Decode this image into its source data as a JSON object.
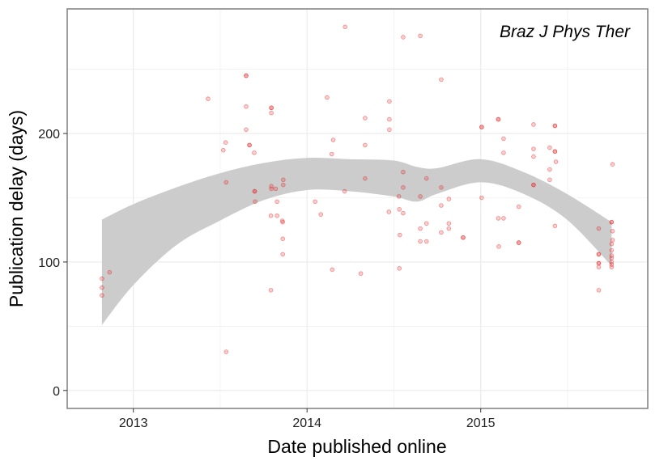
{
  "chart_data": {
    "type": "scatter",
    "annotation": "Braz J Phys Ther",
    "xlabel": "Date published online",
    "ylabel": "Publication delay (days)",
    "xlim": [
      "2012-08-15",
      "2015-12-18"
    ],
    "ylim": [
      -14,
      297
    ],
    "x_ticks": [
      {
        "label": "2013",
        "date": "2013-01-01"
      },
      {
        "label": "2014",
        "date": "2014-01-01"
      },
      {
        "label": "2015",
        "date": "2015-01-01"
      }
    ],
    "y_ticks": [
      0,
      100,
      200
    ],
    "grid": true,
    "point_color": "#e41a1c",
    "band_color": "#cccccc",
    "panel_border_color": "#7f7f7f",
    "grid_color": "#ebebeb",
    "points": [
      {
        "x": "2012-10-27",
        "y": 87
      },
      {
        "x": "2012-10-27",
        "y": 80
      },
      {
        "x": "2012-10-27",
        "y": 74
      },
      {
        "x": "2012-11-12",
        "y": 92
      },
      {
        "x": "2013-06-07",
        "y": 227
      },
      {
        "x": "2013-07-09",
        "y": 187
      },
      {
        "x": "2013-07-14",
        "y": 193
      },
      {
        "x": "2013-07-15",
        "y": 162
      },
      {
        "x": "2013-07-15",
        "y": 30
      },
      {
        "x": "2013-08-26",
        "y": 245
      },
      {
        "x": "2013-08-26",
        "y": 245
      },
      {
        "x": "2013-08-26",
        "y": 221
      },
      {
        "x": "2013-08-26",
        "y": 203
      },
      {
        "x": "2013-09-02",
        "y": 191
      },
      {
        "x": "2013-09-02",
        "y": 191
      },
      {
        "x": "2013-09-12",
        "y": 185
      },
      {
        "x": "2013-09-13",
        "y": 155
      },
      {
        "x": "2013-09-13",
        "y": 155
      },
      {
        "x": "2013-09-14",
        "y": 147
      },
      {
        "x": "2013-10-18",
        "y": 220
      },
      {
        "x": "2013-10-18",
        "y": 220
      },
      {
        "x": "2013-10-18",
        "y": 216
      },
      {
        "x": "2013-10-18",
        "y": 159
      },
      {
        "x": "2013-10-18",
        "y": 157
      },
      {
        "x": "2013-10-17",
        "y": 136
      },
      {
        "x": "2013-10-17",
        "y": 78
      },
      {
        "x": "2013-10-27",
        "y": 157
      },
      {
        "x": "2013-10-30",
        "y": 147
      },
      {
        "x": "2013-10-30",
        "y": 136
      },
      {
        "x": "2013-11-12",
        "y": 164
      },
      {
        "x": "2013-11-12",
        "y": 160
      },
      {
        "x": "2013-11-10",
        "y": 132
      },
      {
        "x": "2013-11-11",
        "y": 131
      },
      {
        "x": "2013-11-11",
        "y": 118
      },
      {
        "x": "2013-11-11",
        "y": 106
      },
      {
        "x": "2014-01-18",
        "y": 147
      },
      {
        "x": "2014-01-30",
        "y": 137
      },
      {
        "x": "2014-02-12",
        "y": 228
      },
      {
        "x": "2014-02-25",
        "y": 195
      },
      {
        "x": "2014-02-22",
        "y": 184
      },
      {
        "x": "2014-02-23",
        "y": 94
      },
      {
        "x": "2014-03-22",
        "y": 283
      },
      {
        "x": "2014-03-21",
        "y": 155
      },
      {
        "x": "2014-04-24",
        "y": 91
      },
      {
        "x": "2014-05-03",
        "y": 212
      },
      {
        "x": "2014-05-03",
        "y": 191
      },
      {
        "x": "2014-05-03",
        "y": 165
      },
      {
        "x": "2014-06-23",
        "y": 225
      },
      {
        "x": "2014-06-23",
        "y": 211
      },
      {
        "x": "2014-06-23",
        "y": 203
      },
      {
        "x": "2014-06-22",
        "y": 139
      },
      {
        "x": "2014-07-13",
        "y": 151
      },
      {
        "x": "2014-07-14",
        "y": 141
      },
      {
        "x": "2014-07-15",
        "y": 121
      },
      {
        "x": "2014-07-14",
        "y": 95
      },
      {
        "x": "2014-07-22",
        "y": 275
      },
      {
        "x": "2014-07-22",
        "y": 170
      },
      {
        "x": "2014-07-22",
        "y": 158
      },
      {
        "x": "2014-07-22",
        "y": 138
      },
      {
        "x": "2014-08-27",
        "y": 276
      },
      {
        "x": "2014-08-27",
        "y": 151
      },
      {
        "x": "2014-08-27",
        "y": 126
      },
      {
        "x": "2014-08-27",
        "y": 116
      },
      {
        "x": "2014-09-09",
        "y": 165
      },
      {
        "x": "2014-09-09",
        "y": 130
      },
      {
        "x": "2014-09-09",
        "y": 116
      },
      {
        "x": "2014-10-10",
        "y": 242
      },
      {
        "x": "2014-10-10",
        "y": 158
      },
      {
        "x": "2014-10-10",
        "y": 144
      },
      {
        "x": "2014-10-10",
        "y": 123
      },
      {
        "x": "2014-10-26",
        "y": 149
      },
      {
        "x": "2014-10-26",
        "y": 130
      },
      {
        "x": "2014-10-26",
        "y": 126
      },
      {
        "x": "2014-11-25",
        "y": 119
      },
      {
        "x": "2014-11-25",
        "y": 119
      },
      {
        "x": "2015-01-03",
        "y": 205
      },
      {
        "x": "2015-01-03",
        "y": 205
      },
      {
        "x": "2015-01-03",
        "y": 150
      },
      {
        "x": "2015-02-07",
        "y": 211
      },
      {
        "x": "2015-02-07",
        "y": 211
      },
      {
        "x": "2015-02-07",
        "y": 134
      },
      {
        "x": "2015-02-08",
        "y": 112
      },
      {
        "x": "2015-02-18",
        "y": 196
      },
      {
        "x": "2015-02-18",
        "y": 185
      },
      {
        "x": "2015-02-18",
        "y": 134
      },
      {
        "x": "2015-03-22",
        "y": 143
      },
      {
        "x": "2015-03-22",
        "y": 115
      },
      {
        "x": "2015-03-22",
        "y": 115
      },
      {
        "x": "2015-04-22",
        "y": 207
      },
      {
        "x": "2015-04-22",
        "y": 188
      },
      {
        "x": "2015-04-22",
        "y": 182
      },
      {
        "x": "2015-04-22",
        "y": 160
      },
      {
        "x": "2015-04-22",
        "y": 160
      },
      {
        "x": "2015-05-26",
        "y": 189
      },
      {
        "x": "2015-05-26",
        "y": 172
      },
      {
        "x": "2015-05-26",
        "y": 164
      },
      {
        "x": "2015-06-06",
        "y": 206
      },
      {
        "x": "2015-06-06",
        "y": 206
      },
      {
        "x": "2015-06-06",
        "y": 186
      },
      {
        "x": "2015-06-06",
        "y": 186
      },
      {
        "x": "2015-06-08",
        "y": 178
      },
      {
        "x": "2015-06-06",
        "y": 128
      },
      {
        "x": "2015-09-06",
        "y": 126
      },
      {
        "x": "2015-09-06",
        "y": 106
      },
      {
        "x": "2015-09-06",
        "y": 106
      },
      {
        "x": "2015-09-06",
        "y": 99
      },
      {
        "x": "2015-09-06",
        "y": 99
      },
      {
        "x": "2015-09-06",
        "y": 96
      },
      {
        "x": "2015-09-06",
        "y": 78
      },
      {
        "x": "2015-10-05",
        "y": 176
      },
      {
        "x": "2015-10-03",
        "y": 131
      },
      {
        "x": "2015-10-03",
        "y": 131
      },
      {
        "x": "2015-10-05",
        "y": 124
      },
      {
        "x": "2015-10-05",
        "y": 117
      },
      {
        "x": "2015-10-03",
        "y": 114
      },
      {
        "x": "2015-10-03",
        "y": 109
      },
      {
        "x": "2015-10-03",
        "y": 105
      },
      {
        "x": "2015-10-03",
        "y": 103
      },
      {
        "x": "2015-10-03",
        "y": 100
      },
      {
        "x": "2015-10-03",
        "y": 98
      },
      {
        "x": "2015-10-03",
        "y": 96
      }
    ],
    "smooth_band": [
      {
        "x": "2012-10-27",
        "lower": 51,
        "upper": 133
      },
      {
        "x": "2013-01-01",
        "lower": 82,
        "upper": 145
      },
      {
        "x": "2013-04-01",
        "lower": 113,
        "upper": 158
      },
      {
        "x": "2013-07-01",
        "lower": 132,
        "upper": 169
      },
      {
        "x": "2013-10-01",
        "lower": 148,
        "upper": 177
      },
      {
        "x": "2014-01-01",
        "lower": 156,
        "upper": 181
      },
      {
        "x": "2014-04-01",
        "lower": 155,
        "upper": 180
      },
      {
        "x": "2014-07-01",
        "lower": 151,
        "upper": 179
      },
      {
        "x": "2014-08-20",
        "lower": 147,
        "upper": 174
      },
      {
        "x": "2014-10-01",
        "lower": 153,
        "upper": 173
      },
      {
        "x": "2015-01-01",
        "lower": 162,
        "upper": 180
      },
      {
        "x": "2015-04-01",
        "lower": 153,
        "upper": 170
      },
      {
        "x": "2015-07-01",
        "lower": 133,
        "upper": 153
      },
      {
        "x": "2015-10-03",
        "lower": 97,
        "upper": 131
      }
    ]
  }
}
